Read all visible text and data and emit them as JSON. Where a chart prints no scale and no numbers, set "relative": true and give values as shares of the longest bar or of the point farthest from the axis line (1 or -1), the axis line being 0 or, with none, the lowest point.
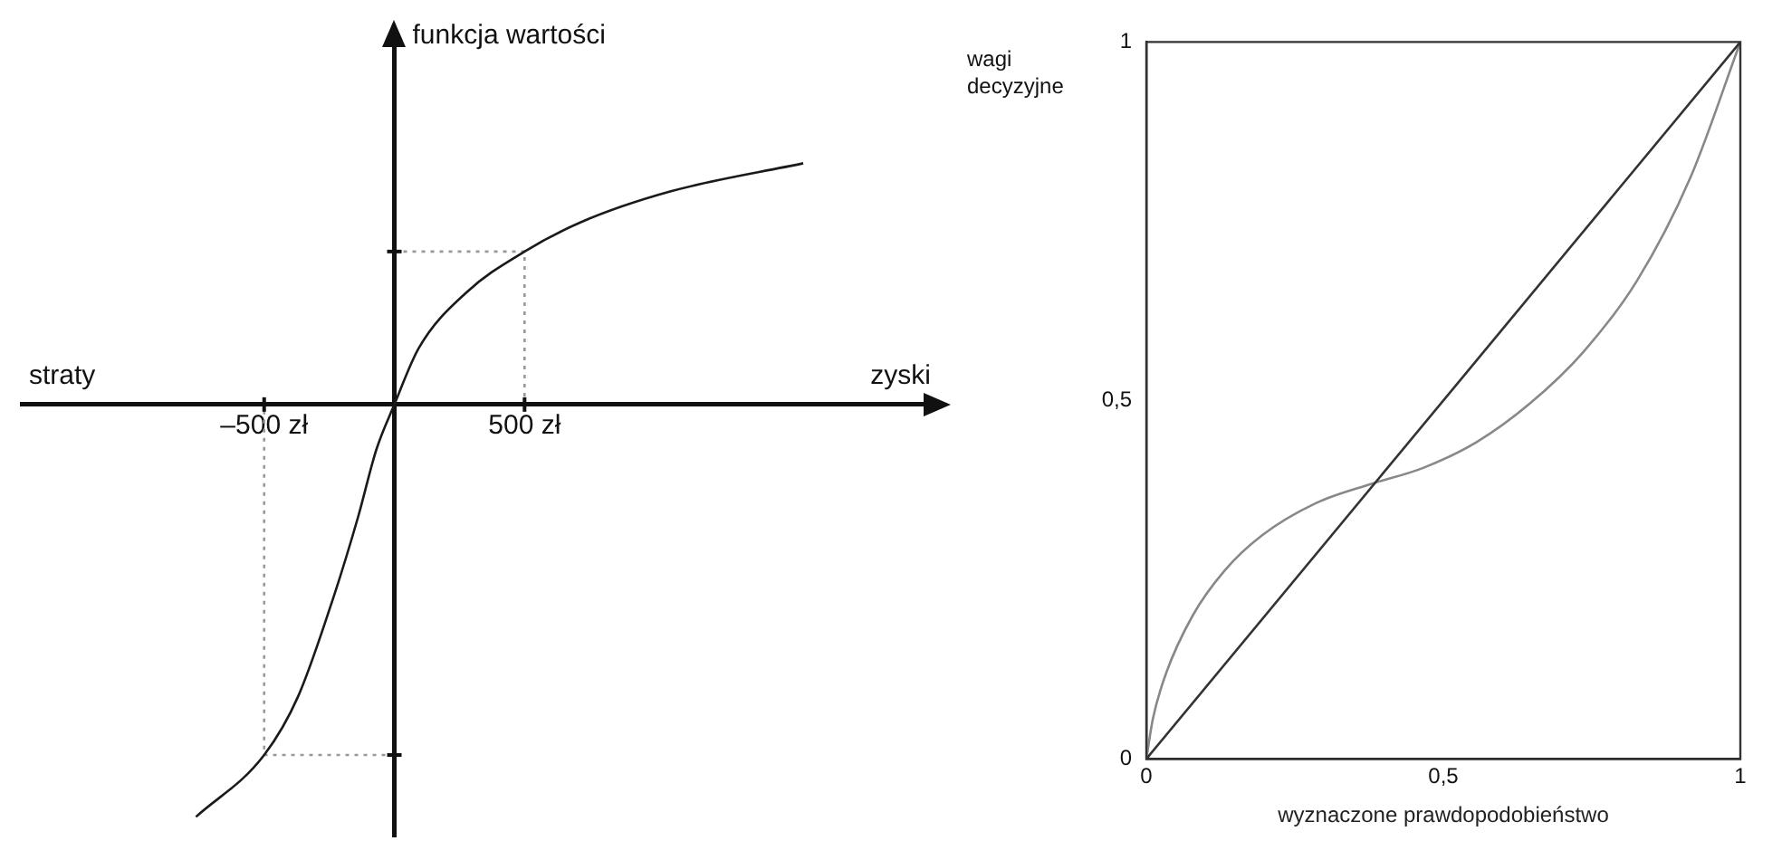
{
  "chart_data": [
    {
      "type": "line",
      "relative": true,
      "ylabel": "funkcja wartości",
      "annotations": [
        "straty",
        "zyski"
      ],
      "xlim": [
        -1431,
        2088
      ],
      "xticks": [
        {
          "value": -500,
          "label": "–500 zł"
        },
        {
          "value": 500,
          "label": "500 zł"
        }
      ],
      "tick_labels": "x",
      "grid": false,
      "series": [
        {
          "color": "#1a1a1a",
          "x": [
            -762,
            -500,
            -369,
            -231,
            -139,
            -69,
            0,
            93,
            277,
            500,
            716,
            1062,
            1570
          ],
          "values": [
            -1,
            -0.85,
            -0.707,
            -0.462,
            -0.272,
            -0.109,
            0,
            0.136,
            0.272,
            0.371,
            0.442,
            0.517,
            0.585
          ]
        },
        {
          "color": "#999999",
          "line_style": "dotted",
          "x": [
            0,
            500,
            500
          ],
          "values": [
            0.371,
            0.371,
            0
          ]
        },
        {
          "color": "#999999",
          "line_style": "dotted",
          "x": [
            0,
            -500,
            -500
          ],
          "values": [
            -0.85,
            -0.85,
            0
          ]
        }
      ]
    },
    {
      "type": "line",
      "xlabel": "wyznaczone prawdopodobieństwo",
      "ylabel": "wagi decyzyjne",
      "xlim": [
        0,
        1
      ],
      "ylim": [
        0,
        1
      ],
      "xticks": [
        0,
        {
          "value": 0.5,
          "label": "0,5"
        },
        1
      ],
      "yticks": [
        0,
        {
          "value": 0.5,
          "label": "0,5"
        },
        1
      ],
      "grid": false,
      "series": [
        {
          "color": "#333333",
          "x": [
            0,
            1
          ],
          "values": [
            0,
            1
          ]
        },
        {
          "color": "#888888",
          "x": [
            0,
            0.011,
            0.033,
            0.078,
            0.132,
            0.195,
            0.286,
            0.38,
            0.466,
            0.556,
            0.646,
            0.736,
            0.826,
            0.916,
            1
          ],
          "values": [
            0,
            0.056,
            0.119,
            0.2,
            0.263,
            0.312,
            0.357,
            0.384,
            0.406,
            0.442,
            0.496,
            0.568,
            0.667,
            0.811,
            1
          ]
        }
      ]
    }
  ]
}
